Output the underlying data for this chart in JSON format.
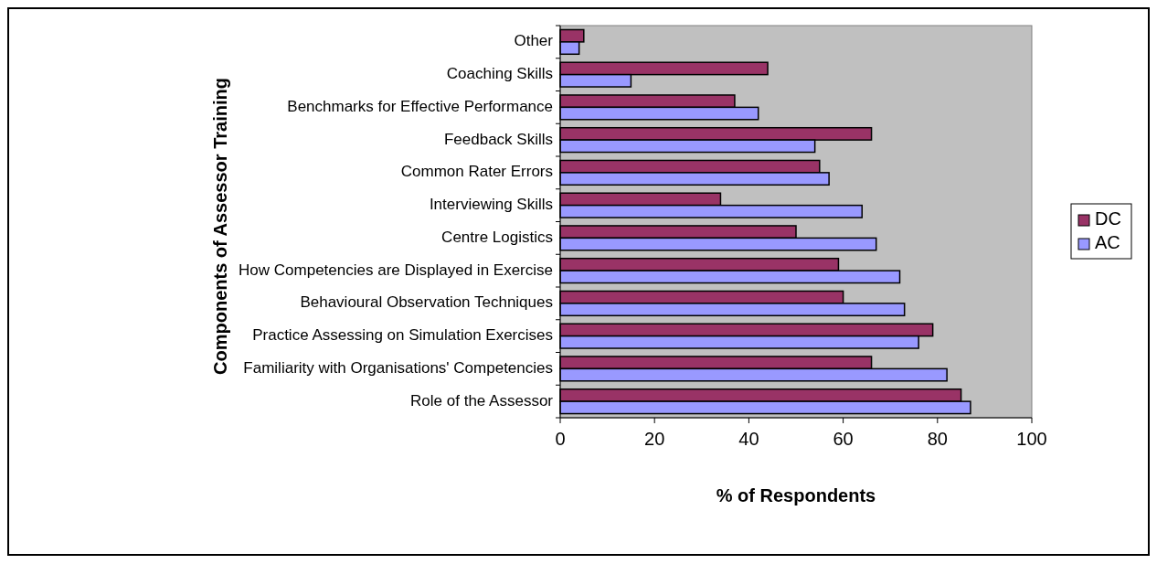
{
  "chart_data": {
    "type": "bar",
    "orientation": "horizontal",
    "xlabel": "% of Respondents",
    "ylabel": "Components of Assessor Training",
    "categories": [
      "Other",
      "Coaching Skills",
      "Benchmarks for Effective Performance",
      "Feedback Skills",
      "Common Rater Errors",
      "Interviewing Skills",
      "Centre Logistics",
      "How Competencies are Displayed in Exercise",
      "Behavioural Observation Techniques",
      "Practice Assessing on Simulation Exercises",
      "Familiarity with Organisations' Competencies",
      "Role of the Assessor"
    ],
    "series": [
      {
        "name": "DC",
        "color": "#993366",
        "values": [
          5,
          44,
          37,
          66,
          55,
          34,
          50,
          59,
          60,
          79,
          66,
          85
        ]
      },
      {
        "name": "AC",
        "color": "#9999ff",
        "values": [
          4,
          15,
          42,
          54,
          57,
          64,
          67,
          72,
          73,
          76,
          82,
          87
        ]
      }
    ],
    "xlim": [
      0,
      100
    ],
    "xticks": [
      0,
      20,
      40,
      60,
      80,
      100
    ],
    "grid": false,
    "legend": "right"
  }
}
